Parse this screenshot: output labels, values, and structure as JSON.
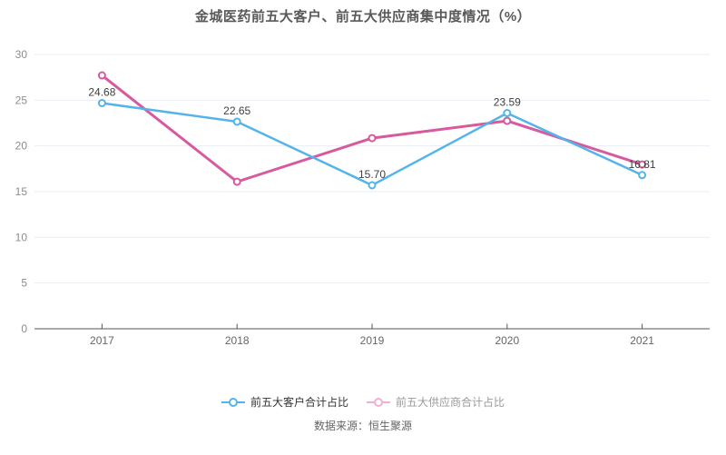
{
  "title": "金城医药前五大客户、前五大供应商集中度情况（%）",
  "footer": {
    "source_label": "数据来源：恒生聚源"
  },
  "colors": {
    "customer_series": "#54b4e9",
    "supplier_series": "#d85a9e",
    "grid": "#e9edf4",
    "axis": "#555555",
    "y_tick_label": "#8c8c8c",
    "x_tick_label": "#666666",
    "data_label": "#404040",
    "title_text": "#595959",
    "legend_active_text": "#333333",
    "legend_muted_text": "#9a9a9a",
    "legend_muted_marker": "#efb0d4"
  },
  "legend": {
    "items": [
      {
        "label": "前五大客户合计占比",
        "marker_color": "#54b4e9",
        "text_color": "#333333"
      },
      {
        "label": "前五大供应商合计占比",
        "marker_color": "#efb0d4",
        "text_color": "#9a9a9a"
      }
    ]
  },
  "chart_data": {
    "type": "line",
    "title": "金城医药前五大客户、前五大供应商集中度情况（%）",
    "categories": [
      "2017",
      "2018",
      "2019",
      "2020",
      "2021"
    ],
    "series": [
      {
        "name": "前五大客户合计占比",
        "values": [
          24.68,
          22.65,
          15.7,
          23.59,
          16.81
        ],
        "labels": [
          "24.68",
          "22.65",
          "15.70",
          "23.59",
          "16.81"
        ],
        "show_labels": true,
        "color": "#54b4e9",
        "line_width": 2.5
      },
      {
        "name": "前五大供应商合计占比",
        "values": [
          27.71,
          16.08,
          20.85,
          22.74,
          17.97
        ],
        "labels": [],
        "show_labels": false,
        "color": "#d85a9e",
        "line_width": 3
      }
    ],
    "xlabel": "",
    "ylabel": "",
    "ylim": [
      0,
      30
    ],
    "yticks": [
      0,
      5,
      10,
      15,
      20,
      25,
      30
    ],
    "grid": true,
    "legend_position": "bottom",
    "marker": "hollow-circle"
  }
}
